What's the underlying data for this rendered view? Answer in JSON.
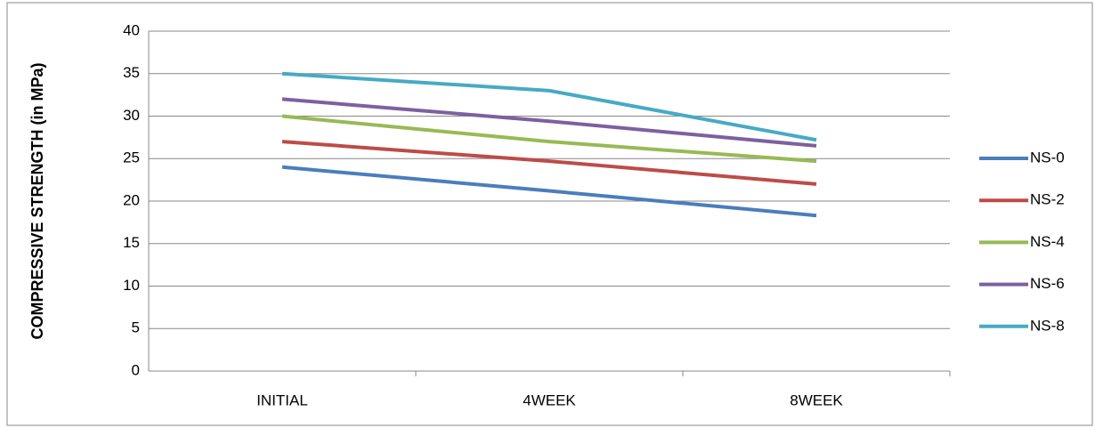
{
  "chart_data": {
    "type": "line",
    "y_label": "COMPRESSIVE STRENGTH (in MPa)",
    "categories": [
      "INITIAL",
      "4WEEK",
      "8WEEK"
    ],
    "series": [
      {
        "name": "NS-0",
        "color": "#4a7ebb",
        "values": [
          24,
          21.2,
          18.3
        ]
      },
      {
        "name": "NS-2",
        "color": "#be4b48",
        "values": [
          27,
          24.7,
          22
        ]
      },
      {
        "name": "NS-4",
        "color": "#98b954",
        "values": [
          30,
          27,
          24.7
        ]
      },
      {
        "name": "NS-6",
        "color": "#7d60a0",
        "values": [
          32,
          29.4,
          26.5
        ]
      },
      {
        "name": "NS-8",
        "color": "#46aac5",
        "values": [
          35,
          33,
          27.2
        ]
      }
    ],
    "ylim": [
      0,
      40
    ],
    "yticks": [
      0,
      5,
      10,
      15,
      20,
      25,
      30,
      35,
      40
    ],
    "grid": true,
    "legend": "right"
  }
}
